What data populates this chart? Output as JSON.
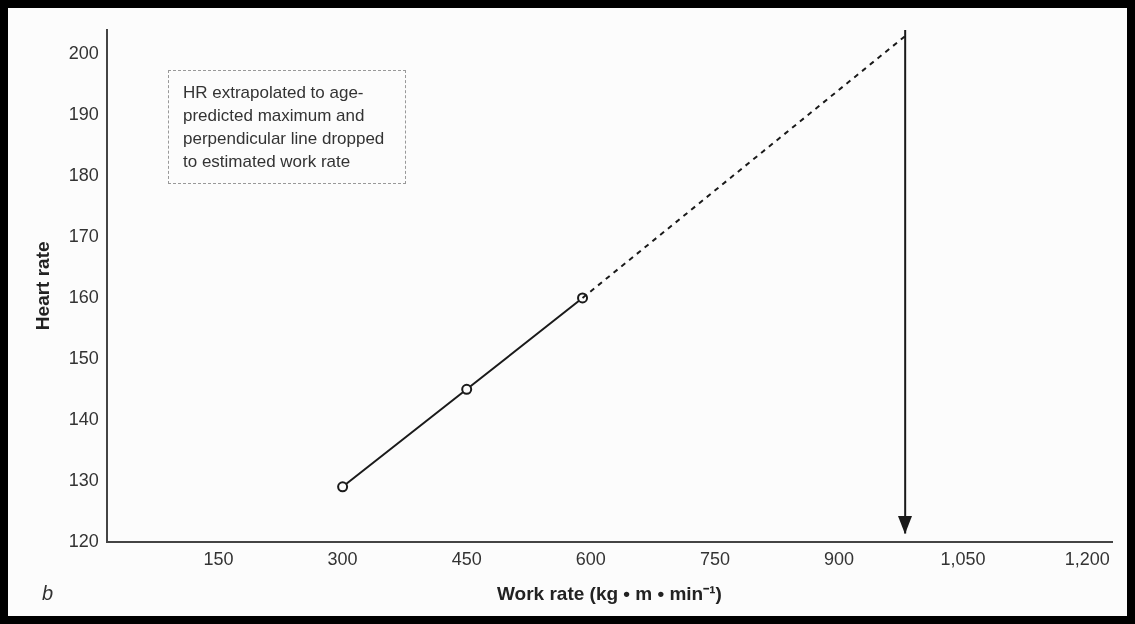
{
  "chart_data": {
    "type": "line",
    "xlabel": "Work rate (kg • m • min⁻¹)",
    "ylabel": "Heart rate",
    "xlim": [
      15,
      1230
    ],
    "ylim": [
      120,
      204
    ],
    "xticks": [
      150,
      300,
      450,
      {
        "value": 600,
        "label": "600"
      },
      750,
      900,
      {
        "value": 1050,
        "label": "1,050"
      },
      {
        "value": 1200,
        "label": "1,200"
      }
    ],
    "yticks": [
      120,
      130,
      140,
      150,
      160,
      170,
      180,
      190,
      200
    ],
    "grid": false,
    "legend": false,
    "series": [
      {
        "color": "#1a1a1a",
        "x": [
          300,
          450,
          590
        ],
        "values": [
          129,
          145,
          160
        ],
        "marker": "circle",
        "line_style": "solid"
      },
      {
        "color": "#1a1a1a",
        "x": [
          590,
          980
        ],
        "values": [
          160,
          203
        ],
        "marker": "none",
        "line_style": "dashed"
      }
    ],
    "ref_lines": [
      {
        "axis": "x",
        "value": 980,
        "color": "#1a1a1a",
        "line_style": "solid"
      }
    ],
    "annotations": [
      "HR extrapolated to age-predicted maximum and perpendicular line dropped to estimated work rate",
      "b"
    ]
  }
}
